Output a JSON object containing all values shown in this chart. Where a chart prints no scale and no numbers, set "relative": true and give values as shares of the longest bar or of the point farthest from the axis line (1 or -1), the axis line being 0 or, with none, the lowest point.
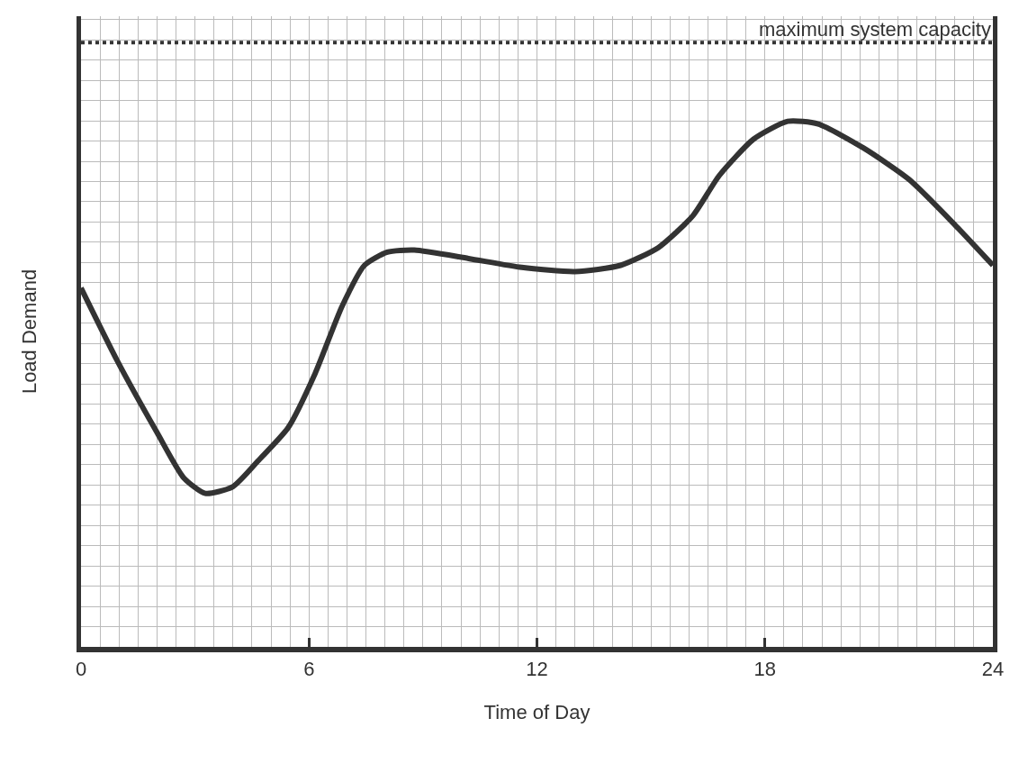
{
  "chart_data": {
    "type": "line",
    "relative": true,
    "xlabel": "Time of Day",
    "ylabel": "Load Demand",
    "xlim": [
      0,
      24
    ],
    "xticks": [
      0,
      6,
      12,
      18,
      24
    ],
    "grid": true,
    "marker": "none",
    "line_style": "solid",
    "x": [
      0,
      0.95,
      2.0,
      2.7,
      3.27,
      4.0,
      4.7,
      5.45,
      6.16,
      6.87,
      7.46,
      8.06,
      8.77,
      10.2,
      11.6,
      13.0,
      14.2,
      15.2,
      16.1,
      16.8,
      17.7,
      18.6,
      19.4,
      20.6,
      21.8,
      23.0,
      24
    ],
    "series": [
      {
        "color": "#333333",
        "values": [
          0.683,
          0.545,
          0.408,
          0.322,
          0.292,
          0.305,
          0.357,
          0.417,
          0.52,
          0.648,
          0.726,
          0.751,
          0.755,
          0.739,
          0.722,
          0.714,
          0.726,
          0.76,
          0.82,
          0.897,
          0.966,
          1.0,
          0.995,
          0.949,
          0.889,
          0.803,
          0.726
        ]
      }
    ],
    "ref_lines": [
      {
        "axis": "y",
        "value": 1.15,
        "label": "maximum system capacity",
        "color": "#333333",
        "line_style": "dotted"
      }
    ]
  }
}
